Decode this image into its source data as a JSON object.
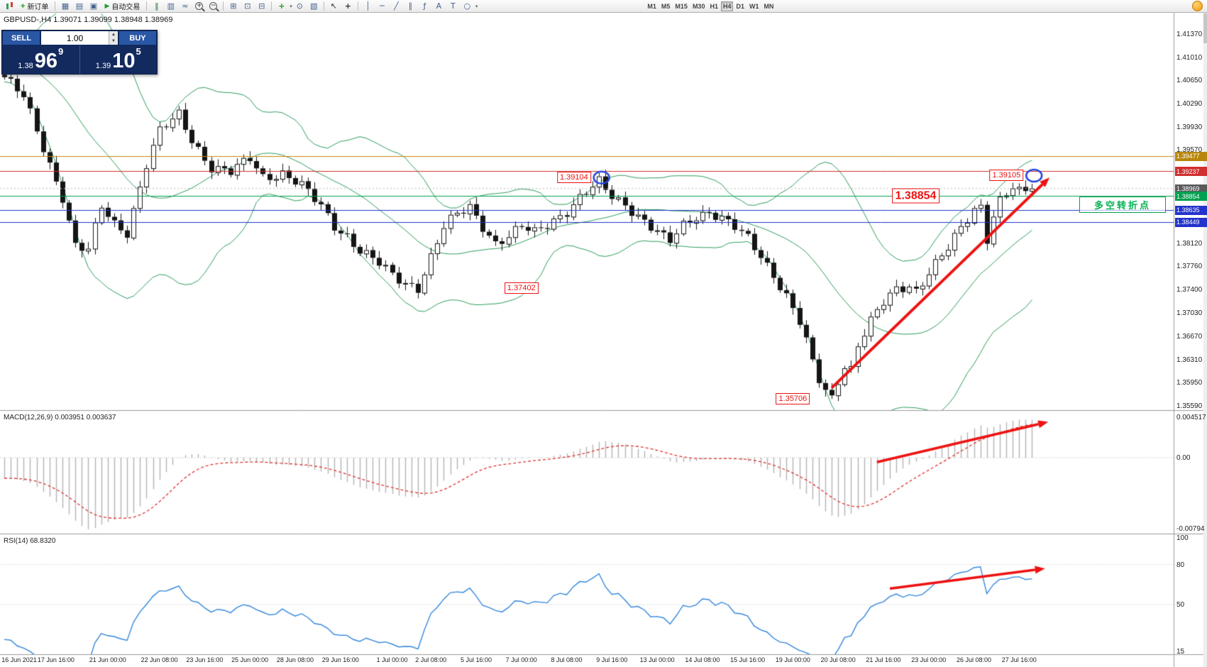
{
  "toolbar": {
    "new_order": "新订单",
    "auto_trading": "自动交易",
    "text_tool": "A",
    "label_tool": "T",
    "timeframes": [
      "M1",
      "M5",
      "M15",
      "M30",
      "H1",
      "H4",
      "D1",
      "W1",
      "MN"
    ],
    "active_timeframe": "H4"
  },
  "trade_panel": {
    "sell_label": "SELL",
    "buy_label": "BUY",
    "volume": "1.00",
    "sell_small": "1.38",
    "sell_big": "96",
    "sell_sup": "9",
    "buy_small": "1.39",
    "buy_big": "10",
    "buy_sup": "5"
  },
  "chart": {
    "symbol_header": "GBPUSD-,H4 1.39071 1.39099 1.38948 1.38969",
    "macd_header": "MACD(12,26,9) 0.003951 0.003637",
    "rsi_header": "RSI(14) 68.8320",
    "note_text": "多空转折点"
  },
  "chart_data": {
    "type": "candlestick",
    "symbol": "GBPUSD-",
    "timeframe": "H4",
    "current_ohlc": {
      "open": 1.39071,
      "high": 1.39099,
      "low": 1.38948,
      "close": 1.38969
    },
    "sell_price": 1.38969,
    "buy_price": 1.39105,
    "candle_count": 160,
    "y_ticks": [
      1.4137,
      1.4101,
      1.4065,
      1.4029,
      1.3993,
      1.3957,
      1.3812,
      1.3776,
      1.374,
      1.3703,
      1.3667,
      1.3631,
      1.3595,
      1.3559
    ],
    "price_tags": [
      {
        "label": "1.39477",
        "value": 1.39477,
        "bg": "#B8860B"
      },
      {
        "label": "1.39237",
        "value": 1.39237,
        "bg": "#D03030"
      },
      {
        "label": "1.38969",
        "value": 1.38969,
        "bg": "#5A5A5A"
      },
      {
        "label": "1.38854",
        "value": 1.38854,
        "bg": "#00A050"
      },
      {
        "label": "1.38635",
        "value": 1.38635,
        "bg": "#2333CC"
      },
      {
        "label": "1.38449",
        "value": 1.38449,
        "bg": "#2333CC"
      }
    ],
    "h_lines": [
      {
        "value": 1.39477,
        "color": "#C8860B"
      },
      {
        "value": 1.39237,
        "color": "#D03030"
      },
      {
        "value": 1.38854,
        "color": "#00A050"
      },
      {
        "value": 1.38635,
        "color": "#2333CC"
      },
      {
        "value": 1.38449,
        "color": "#2333CC"
      }
    ],
    "bid_line": 1.38969,
    "x_labels": [
      [
        "16 Jun 2021",
        0
      ],
      [
        "17 Jun 16:00",
        8
      ],
      [
        "21 Jun 00:00",
        16
      ],
      [
        "22 Jun 08:00",
        24
      ],
      [
        "23 Jun 16:00",
        31
      ],
      [
        "25 Jun 00:00",
        38
      ],
      [
        "28 Jun 08:00",
        45
      ],
      [
        "29 Jun 16:00",
        52
      ],
      [
        "1 Jul 00:00",
        60
      ],
      [
        "2 Jul 08:00",
        66
      ],
      [
        "5 Jul 16:00",
        73
      ],
      [
        "7 Jul 00:00",
        80
      ],
      [
        "8 Jul 08:00",
        87
      ],
      [
        "9 Jul 16:00",
        94
      ],
      [
        "13 Jul 00:00",
        101
      ],
      [
        "14 Jul 08:00",
        108
      ],
      [
        "15 Jul 16:00",
        115
      ],
      [
        "19 Jul 00:00",
        122
      ],
      [
        "20 Jul 08:00",
        129
      ],
      [
        "21 Jul 16:00",
        136
      ],
      [
        "23 Jul 00:00",
        143
      ],
      [
        "26 Jul 08:00",
        150
      ],
      [
        "27 Jul 16:00",
        157
      ]
    ],
    "close_anchors": [
      [
        0,
        1.407
      ],
      [
        3,
        1.4038
      ],
      [
        6,
        1.396
      ],
      [
        9,
        1.3885
      ],
      [
        11,
        1.3808
      ],
      [
        13,
        1.38
      ],
      [
        15,
        1.3868
      ],
      [
        17,
        1.3842
      ],
      [
        19,
        1.383
      ],
      [
        22,
        1.3935
      ],
      [
        24,
        1.3985
      ],
      [
        27,
        1.4012
      ],
      [
        29,
        1.3974
      ],
      [
        32,
        1.393
      ],
      [
        35,
        1.3921
      ],
      [
        38,
        1.3944
      ],
      [
        40,
        1.3916
      ],
      [
        43,
        1.3921
      ],
      [
        46,
        1.39
      ],
      [
        49,
        1.3869
      ],
      [
        51,
        1.384
      ],
      [
        53,
        1.3824
      ],
      [
        55,
        1.38
      ],
      [
        58,
        1.3779
      ],
      [
        60,
        1.3762
      ],
      [
        62,
        1.3751
      ],
      [
        64,
        1.3744
      ],
      [
        66,
        1.379
      ],
      [
        68,
        1.3836
      ],
      [
        70,
        1.3856
      ],
      [
        72,
        1.3869
      ],
      [
        74,
        1.384
      ],
      [
        76,
        1.3812
      ],
      [
        78,
        1.3821
      ],
      [
        80,
        1.3836
      ],
      [
        82,
        1.3829
      ],
      [
        85,
        1.385
      ],
      [
        87,
        1.3862
      ],
      [
        89,
        1.3881
      ],
      [
        92,
        1.3906
      ],
      [
        94,
        1.3886
      ],
      [
        96,
        1.3874
      ],
      [
        98,
        1.3855
      ],
      [
        100,
        1.3836
      ],
      [
        102,
        1.3819
      ],
      [
        103,
        1.3814
      ],
      [
        105,
        1.3841
      ],
      [
        107,
        1.3856
      ],
      [
        109,
        1.3861
      ],
      [
        111,
        1.3849
      ],
      [
        113,
        1.3835
      ],
      [
        115,
        1.3819
      ],
      [
        117,
        1.3794
      ],
      [
        119,
        1.3764
      ],
      [
        121,
        1.3729
      ],
      [
        123,
        1.3688
      ],
      [
        124,
        1.3658
      ],
      [
        125,
        1.3624
      ],
      [
        126,
        1.3599
      ],
      [
        127,
        1.3584
      ],
      [
        128,
        1.3572
      ],
      [
        129,
        1.3601
      ],
      [
        130,
        1.3624
      ],
      [
        131,
        1.3617
      ],
      [
        132,
        1.3654
      ],
      [
        134,
        1.3689
      ],
      [
        136,
        1.3719
      ],
      [
        138,
        1.3741
      ],
      [
        140,
        1.3748
      ],
      [
        141,
        1.3739
      ],
      [
        143,
        1.3767
      ],
      [
        145,
        1.3791
      ],
      [
        146,
        1.3803
      ],
      [
        148,
        1.3835
      ],
      [
        150,
        1.3866
      ],
      [
        151,
        1.3871
      ],
      [
        152,
        1.3821
      ],
      [
        153,
        1.3856
      ],
      [
        154,
        1.3879
      ],
      [
        155,
        1.3889
      ],
      [
        156,
        1.3897
      ],
      [
        157,
        1.3889
      ],
      [
        158,
        1.3893
      ],
      [
        159,
        1.38969
      ]
    ],
    "indicators": {
      "bollinger": {
        "period": 20,
        "deviation": 2,
        "color": "#2E9E5B"
      },
      "macd": {
        "fast": 12,
        "slow": 26,
        "signal": 9,
        "value": 0.003951,
        "signal_value": 0.003637,
        "axis": [
          [
            "0.004517",
            0.004517
          ],
          [
            "0.00",
            0
          ],
          [
            "-0.00794",
            -0.00794
          ]
        ],
        "hist_color": "#B4B4B4",
        "line_color": "#DD3333"
      },
      "rsi": {
        "period": 14,
        "value": 68.832,
        "axis": [
          [
            "100",
            100
          ],
          [
            "80",
            80
          ],
          [
            "50",
            50
          ],
          [
            "15",
            15
          ]
        ],
        "levels": [
          80,
          50
        ],
        "color": "#3388DD"
      }
    },
    "annotations": {
      "color": "#EE1111",
      "price_labels": [
        {
          "text": "1.39104",
          "i": 92.4,
          "value": 1.3914,
          "placement": "left",
          "large": false
        },
        {
          "text": "1.39105",
          "i": 159.3,
          "value": 1.3917,
          "placement": "left",
          "large": false
        },
        {
          "text": "1.38854",
          "i": 141,
          "value": 1.38854,
          "placement": "center",
          "large": true
        },
        {
          "text": "1.37402",
          "i": 80,
          "value": 1.3742,
          "placement": "center",
          "large": false
        },
        {
          "text": "1.35706",
          "i": 122,
          "value": 1.357,
          "placement": "center",
          "large": false
        }
      ],
      "circles": [
        {
          "i": 92.4,
          "value": 1.3914
        },
        {
          "i": 159.3,
          "value": 1.3917
        }
      ],
      "arrows": [
        {
          "pane": "main",
          "from": [
            128,
            1.3587
          ],
          "to": [
            161.7,
            1.3914
          ]
        },
        {
          "pane": "macd",
          "from": [
            135,
            -0.0005
          ],
          "to": [
            161.5,
            0.004
          ]
        },
        {
          "pane": "rsi",
          "from": [
            137,
            62
          ],
          "to": [
            161,
            77
          ]
        }
      ]
    }
  }
}
